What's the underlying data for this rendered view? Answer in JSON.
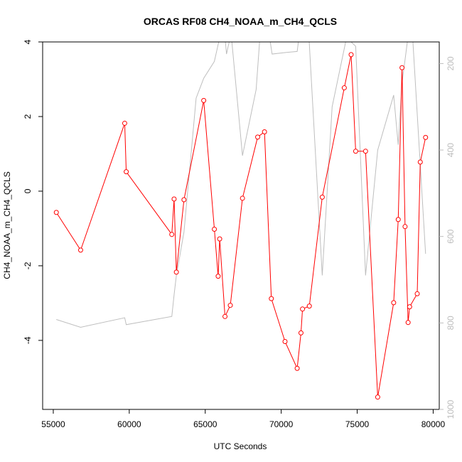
{
  "chart_data": {
    "type": "line",
    "title": "ORCAS RF08 CH4_NOAA_m_CH4_QCLS",
    "xlabel": "UTC Seconds",
    "ylabel": "CH4_NOAA_m_CH4_QCLS",
    "xlim": [
      54300,
      80400
    ],
    "ylim": [
      -5.85,
      4.0
    ],
    "y2lim": [
      1000,
      150
    ],
    "x_ticks": [
      55000,
      60000,
      65000,
      70000,
      75000,
      80000
    ],
    "x_tick_labels": [
      "55000",
      "60000",
      "65000",
      "70000",
      "75000",
      "80000"
    ],
    "y_ticks": [
      -4,
      -2,
      0,
      2,
      4
    ],
    "y_tick_labels": [
      "-4",
      "-2",
      "0",
      "2",
      "4"
    ],
    "y2_ticks": [
      200,
      400,
      600,
      800,
      1000
    ],
    "y2_tick_labels": [
      "200",
      "400",
      "600",
      "800",
      "1000"
    ],
    "grid": false,
    "series": [
      {
        "color": "#ff0000",
        "axis": "left",
        "markers": true,
        "points": [
          [
            55200,
            -0.57
          ],
          [
            56800,
            -1.58
          ],
          [
            59700,
            1.82
          ],
          [
            59800,
            0.52
          ],
          [
            62800,
            -1.16
          ],
          [
            62950,
            -0.21
          ],
          [
            63100,
            -2.17
          ],
          [
            63600,
            -0.23
          ],
          [
            64900,
            2.43
          ],
          [
            65600,
            -1.02
          ],
          [
            65850,
            -2.28
          ],
          [
            65950,
            -1.28
          ],
          [
            66300,
            -3.36
          ],
          [
            66650,
            -3.06
          ],
          [
            67450,
            -0.19
          ],
          [
            68450,
            1.45
          ],
          [
            68900,
            1.59
          ],
          [
            69350,
            -2.88
          ],
          [
            70250,
            -4.03
          ],
          [
            71050,
            -4.75
          ],
          [
            71300,
            -3.8
          ],
          [
            71400,
            -3.16
          ],
          [
            71850,
            -3.08
          ],
          [
            72700,
            -0.16
          ],
          [
            74150,
            2.77
          ],
          [
            74600,
            3.66
          ],
          [
            74900,
            1.07
          ],
          [
            75550,
            1.07
          ],
          [
            76350,
            -5.52
          ],
          [
            77400,
            -2.99
          ],
          [
            77700,
            -0.76
          ],
          [
            77950,
            3.31
          ],
          [
            78150,
            -0.95
          ],
          [
            78350,
            -3.52
          ],
          [
            78450,
            -3.1
          ],
          [
            78950,
            -2.75
          ],
          [
            79150,
            0.78
          ],
          [
            79500,
            1.44
          ]
        ]
      },
      {
        "color": "#bebebe",
        "axis": "right",
        "markers": false,
        "points": [
          [
            55200,
            792
          ],
          [
            56800,
            810
          ],
          [
            59700,
            788
          ],
          [
            59800,
            804
          ],
          [
            62800,
            785
          ],
          [
            62950,
            735
          ],
          [
            63100,
            690
          ],
          [
            63600,
            590
          ],
          [
            64400,
            280
          ],
          [
            64900,
            234
          ],
          [
            65600,
            195
          ],
          [
            65900,
            148
          ],
          [
            66300,
            140
          ],
          [
            66400,
            178
          ],
          [
            66700,
            130
          ],
          [
            67450,
            413
          ],
          [
            68350,
            260
          ],
          [
            68800,
            40
          ],
          [
            69400,
            178
          ],
          [
            70400,
            174
          ],
          [
            71050,
            172
          ],
          [
            71350,
            90
          ],
          [
            71700,
            60
          ],
          [
            72700,
            690
          ],
          [
            73350,
            300
          ],
          [
            74300,
            140
          ],
          [
            74900,
            160
          ],
          [
            75550,
            690
          ],
          [
            76350,
            400
          ],
          [
            77400,
            273
          ],
          [
            77700,
            388
          ],
          [
            77950,
            245
          ],
          [
            78300,
            150
          ],
          [
            78650,
            140
          ],
          [
            79500,
            640
          ]
        ]
      }
    ]
  }
}
